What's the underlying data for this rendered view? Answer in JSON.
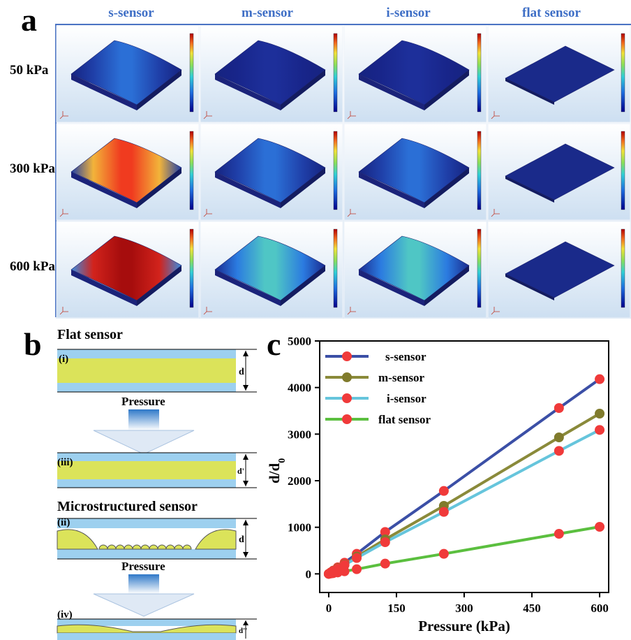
{
  "panel_a": {
    "letter": "a",
    "columns": [
      "s-sensor",
      "m-sensor",
      "i-sensor",
      "flat sensor"
    ],
    "rows": [
      "50 kPa",
      "300 kPa",
      "600 kPa"
    ]
  },
  "panel_b": {
    "letter": "b",
    "flat_title": "Flat sensor",
    "micro_title": "Microstructured sensor",
    "pressure_label": "Pressure",
    "labels": {
      "i": "(i)",
      "ii": "(ii)",
      "iii": "(iii)",
      "iv": "(iv)"
    },
    "gaps": {
      "d": "d",
      "d_prime": "d'",
      "d_double_prime": "d''"
    }
  },
  "panel_c": {
    "letter": "c"
  },
  "chart_data": {
    "type": "line",
    "xlabel": "Pressure (kPa)",
    "ylabel": "d/d",
    "ylabel_sub": "0",
    "xlim": [
      -20,
      620
    ],
    "ylim": [
      -400,
      5000
    ],
    "xticks": [
      0,
      150,
      300,
      450,
      600
    ],
    "yticks": [
      0,
      1000,
      2000,
      3000,
      4000,
      5000
    ],
    "legend_position": "top-left",
    "series": [
      {
        "name": "s-sensor",
        "color": "#3b4fa6",
        "marker": "#f03a3a",
        "x": [
          0,
          5,
          10,
          20,
          35,
          62,
          125,
          255,
          510,
          600
        ],
        "y": [
          0,
          35,
          70,
          140,
          240,
          430,
          900,
          1780,
          3560,
          4180
        ]
      },
      {
        "name": "m-sensor",
        "color": "#8a8a3a",
        "marker": "#807b2c",
        "x": [
          0,
          5,
          10,
          20,
          35,
          62,
          125,
          255,
          510,
          600
        ],
        "y": [
          0,
          30,
          60,
          120,
          200,
          370,
          740,
          1460,
          2930,
          3440
        ]
      },
      {
        "name": "i-sensor",
        "color": "#66c5dc",
        "marker": "#f03a3a",
        "x": [
          0,
          5,
          10,
          20,
          35,
          62,
          125,
          255,
          510,
          600
        ],
        "y": [
          0,
          28,
          55,
          110,
          190,
          340,
          680,
          1330,
          2640,
          3090
        ]
      },
      {
        "name": "flat sensor",
        "color": "#5bbf3f",
        "marker": "#f03a3a",
        "x": [
          0,
          5,
          10,
          20,
          35,
          62,
          125,
          255,
          510,
          600
        ],
        "y": [
          0,
          8,
          15,
          30,
          55,
          100,
          220,
          430,
          860,
          1010
        ]
      }
    ]
  }
}
